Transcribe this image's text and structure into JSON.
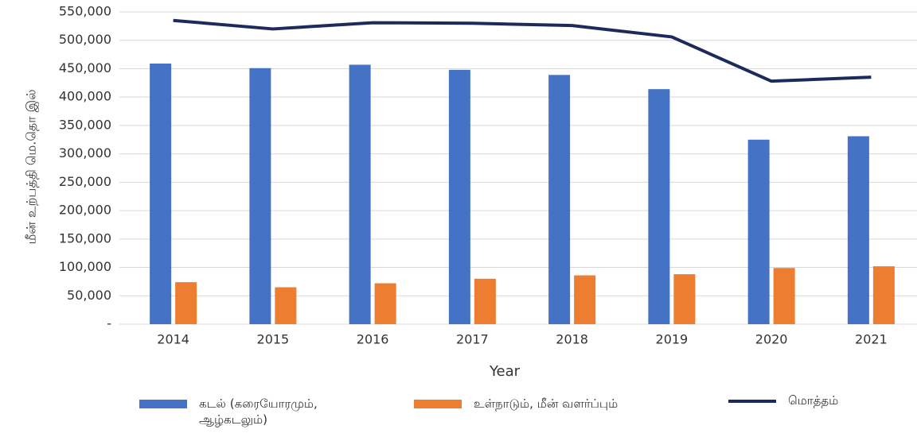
{
  "chart_data": {
    "type": "bar_line",
    "y_label": "மீன் உற்பத்தி மெ.தொ இல்",
    "x_label": "Year",
    "categories": [
      "2014",
      "2015",
      "2016",
      "2017",
      "2018",
      "2019",
      "2020",
      "2021"
    ],
    "series": [
      {
        "name": "கடல் (கரையோரமும், ஆழ்கடலும்)",
        "color": "#4472c4",
        "kind": "bar",
        "values": [
          459000,
          451000,
          457000,
          448000,
          439000,
          414000,
          325000,
          331000
        ]
      },
      {
        "name": "உள்நாடும், மீன் வளர்ப்பும்",
        "color": "#ed7d31",
        "kind": "bar",
        "values": [
          74000,
          65000,
          72000,
          80000,
          86000,
          88000,
          99000,
          102000
        ]
      },
      {
        "name": "மொத்தம்",
        "color": "#1f2a5c",
        "kind": "line",
        "values": [
          535000,
          520000,
          531000,
          530000,
          526000,
          506000,
          428000,
          435000
        ]
      }
    ],
    "ylim": [
      0,
      550000
    ],
    "yticks": [
      {
        "value": 0,
        "label": "-"
      },
      {
        "value": 50000,
        "label": "50,000"
      },
      {
        "value": 100000,
        "label": "100,000"
      },
      {
        "value": 150000,
        "label": "150,000"
      },
      {
        "value": 200000,
        "label": "200,000"
      },
      {
        "value": 250000,
        "label": "250,000"
      },
      {
        "value": 300000,
        "label": "300,000"
      },
      {
        "value": 350000,
        "label": "350,000"
      },
      {
        "value": 400000,
        "label": "400,000"
      },
      {
        "value": 450000,
        "label": "450,000"
      },
      {
        "value": 500000,
        "label": "500,000"
      },
      {
        "value": 550000,
        "label": "550,000"
      }
    ],
    "grid": true,
    "legend": "bottom"
  }
}
